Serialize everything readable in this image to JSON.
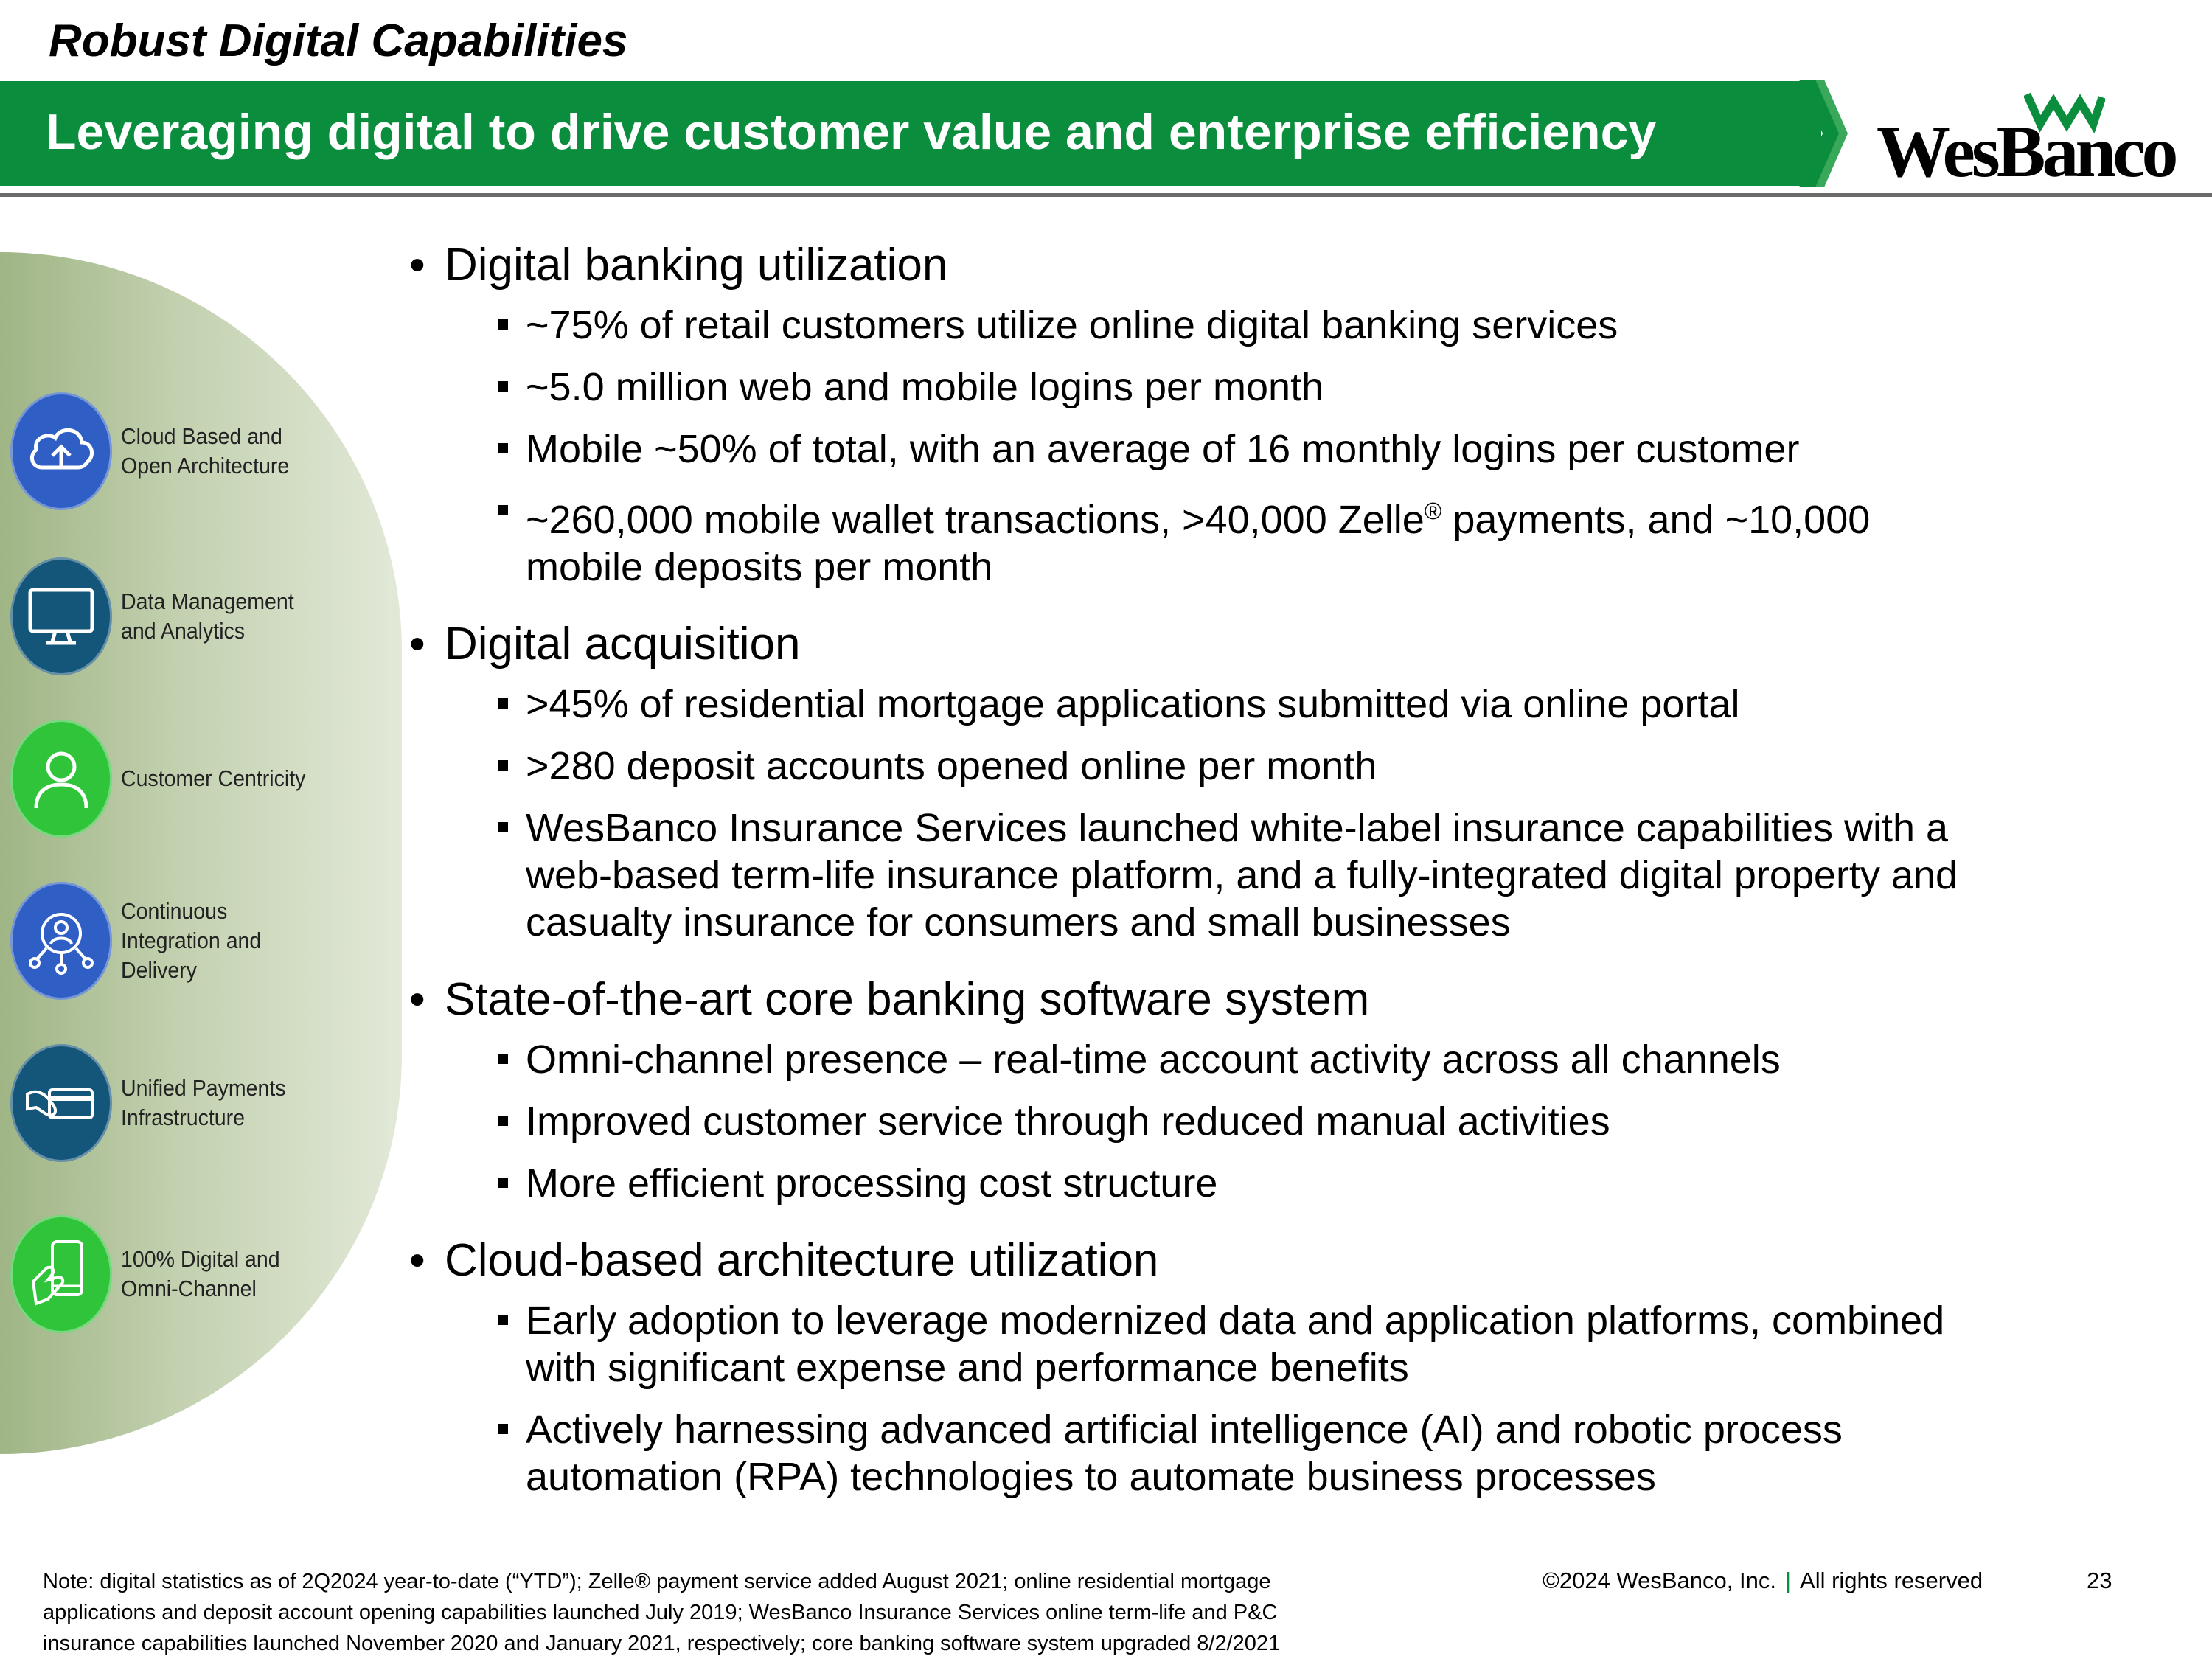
{
  "header": {
    "kicker": "Robust Digital Capabilities",
    "title": "Leveraging digital to drive customer value and enterprise efficiency",
    "logo_text": "WesBanco",
    "brand_green": "#0a8d3c"
  },
  "capabilities": [
    {
      "label": "Cloud Based and Open Architecture",
      "icon": "cloud-upload-icon",
      "color": "#2f5fc4"
    },
    {
      "label": "Data Management and Analytics",
      "icon": "monitor-icon",
      "color": "#14557a"
    },
    {
      "label": "Customer Centricity",
      "icon": "person-icon",
      "color": "#2fc43a"
    },
    {
      "label": "Continuous Integration and Delivery",
      "icon": "network-user-icon",
      "color": "#2f5fc4"
    },
    {
      "label": "Unified Payments Infrastructure",
      "icon": "card-payment-icon",
      "color": "#14557a"
    },
    {
      "label": "100% Digital and Omni-Channel",
      "icon": "mobile-hand-icon",
      "color": "#2fc43a"
    }
  ],
  "sections": [
    {
      "heading": "Digital banking utilization",
      "items": [
        "~75% of retail customers utilize online digital banking services",
        "~5.0 million web and mobile logins per month",
        "Mobile ~50% of total, with an average of 16 monthly logins per customer"
      ],
      "zelle_item": {
        "before": "~260,000 mobile wallet transactions, >40,000 Zelle",
        "reg": "®",
        "after": " payments, and ~10,000",
        "line2": "mobile deposits per month"
      }
    },
    {
      "heading": "Digital acquisition",
      "items": [
        ">45% of residential mortgage applications submitted via online portal",
        ">280 deposit accounts opened online per month"
      ],
      "insurance_lines": [
        "WesBanco Insurance Services launched white-label insurance capabilities with a",
        "web-based term-life insurance platform, and a fully-integrated digital property and",
        "casualty insurance for consumers and small businesses"
      ]
    },
    {
      "heading": "State-of-the-art core banking software system",
      "items": [
        "Omni-channel presence – real-time account activity across all channels",
        "Improved customer service through reduced manual activities",
        "More efficient processing cost structure"
      ]
    },
    {
      "heading": "Cloud-based architecture utilization",
      "wrapped_items": [
        [
          "Early adoption to leverage modernized data and application platforms, combined",
          "with significant expense and performance benefits"
        ],
        [
          "Actively harnessing advanced artificial intelligence (AI) and robotic process",
          "automation (RPA) technologies to automate business processes"
        ]
      ]
    }
  ],
  "footer": {
    "note_lines": [
      "Note: digital statistics as of 2Q2024 year-to-date (“YTD”); Zelle® payment service added August 2021; online residential mortgage",
      "applications and deposit account opening capabilities launched July 2019; WesBanco Insurance Services online term-life and P&C",
      "insurance capabilities launched November 2020 and January 2021, respectively; core banking software system upgraded 8/2/2021"
    ],
    "copyright": "©2024 WesBanco, Inc.",
    "separator": "|",
    "rights": "All rights reserved",
    "page_number": "23"
  }
}
